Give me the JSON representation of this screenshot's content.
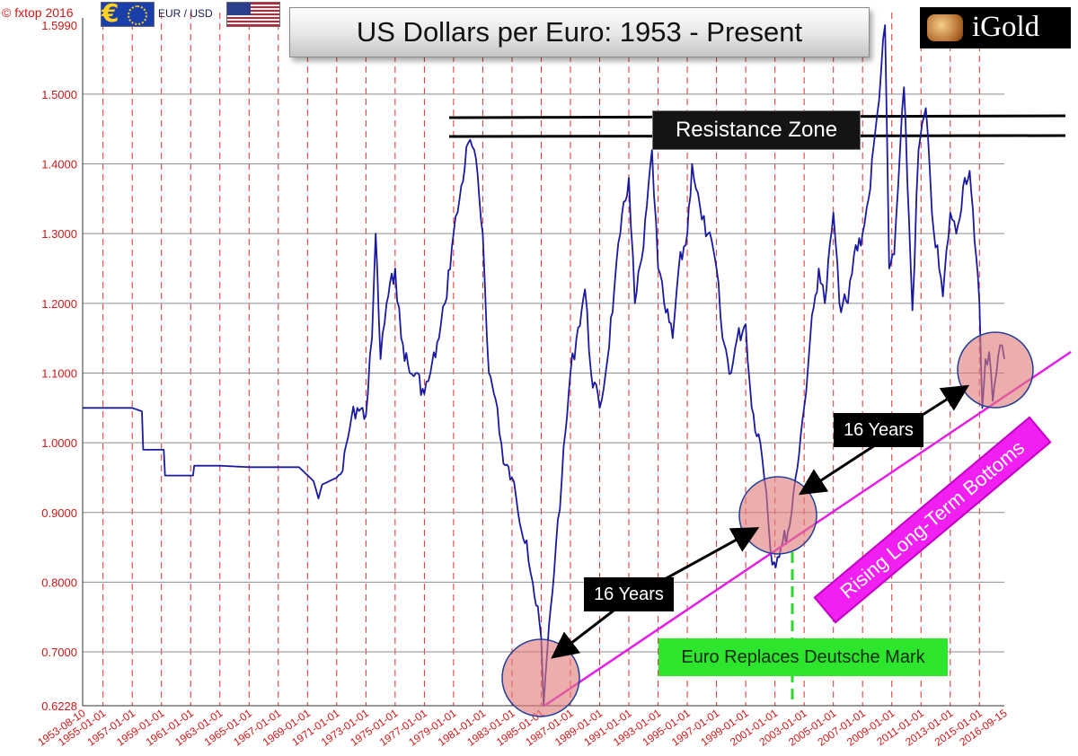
{
  "header": {
    "credit": "© fxtop 2016",
    "pair": "EUR / USD",
    "euro_symbol": "€",
    "logo_text": "iGold"
  },
  "chart_data": {
    "type": "line",
    "title": "US Dollars per Euro: 1953 - Present",
    "xlabel": "",
    "ylabel": "",
    "xlim": [
      "1953-08-10",
      "2016-09-15"
    ],
    "ylim": [
      0.6228,
      1.599
    ],
    "y_ticks": [
      "0.6228",
      "0.7000",
      "0.8000",
      "0.9000",
      "1.0000",
      "1.1000",
      "1.2000",
      "1.3000",
      "1.4000",
      "1.5000",
      "1.5990"
    ],
    "x_ticks": [
      "1953-08-10",
      "1955-01-01",
      "1957-01-01",
      "1959-01-01",
      "1961-01-01",
      "1963-01-01",
      "1965-01-01",
      "1967-01-01",
      "1969-01-01",
      "1971-01-01",
      "1973-01-01",
      "1975-01-01",
      "1977-01-01",
      "1979-01-01",
      "1981-01-01",
      "1983-01-01",
      "1985-01-01",
      "1987-01-01",
      "1989-01-01",
      "1991-01-01",
      "1993-01-01",
      "1995-01-01",
      "1997-01-01",
      "1999-01-01",
      "2001-01-01",
      "2003-01-01",
      "2005-01-01",
      "2007-01-01",
      "2009-01-01",
      "2011-01-01",
      "2013-01-01",
      "2015-01-01",
      "2016-09-15"
    ],
    "grid": true,
    "series": [
      {
        "name": "EUR/USD",
        "color": "#1a1aa0",
        "points": [
          [
            "1953-08-10",
            1.05
          ],
          [
            "1955-01-01",
            1.05
          ],
          [
            "1957-01-01",
            1.05
          ],
          [
            "1957-09-01",
            1.045
          ],
          [
            "1957-10-01",
            0.99
          ],
          [
            "1959-03-01",
            0.99
          ],
          [
            "1959-04-01",
            0.953
          ],
          [
            "1961-03-01",
            0.953
          ],
          [
            "1961-04-01",
            0.967
          ],
          [
            "1963-01-01",
            0.967
          ],
          [
            "1965-01-01",
            0.965
          ],
          [
            "1967-01-01",
            0.965
          ],
          [
            "1968-06-01",
            0.965
          ],
          [
            "1969-06-01",
            0.945
          ],
          [
            "1969-10-01",
            0.92
          ],
          [
            "1970-01-01",
            0.94
          ],
          [
            "1971-01-01",
            0.95
          ],
          [
            "1971-06-01",
            0.96
          ],
          [
            "1972-01-01",
            1.035
          ],
          [
            "1972-06-01",
            1.05
          ],
          [
            "1973-01-01",
            1.04
          ],
          [
            "1973-06-01",
            1.15
          ],
          [
            "1973-09-01",
            1.3
          ],
          [
            "1974-01-01",
            1.12
          ],
          [
            "1974-06-01",
            1.2
          ],
          [
            "1975-01-01",
            1.25
          ],
          [
            "1975-06-01",
            1.15
          ],
          [
            "1976-01-01",
            1.1
          ],
          [
            "1976-06-01",
            1.1
          ],
          [
            "1977-01-01",
            1.07
          ],
          [
            "1977-06-01",
            1.1
          ],
          [
            "1978-01-01",
            1.15
          ],
          [
            "1978-06-01",
            1.2
          ],
          [
            "1979-01-01",
            1.3
          ],
          [
            "1979-06-01",
            1.35
          ],
          [
            "1980-01-01",
            1.43
          ],
          [
            "1980-06-01",
            1.42
          ],
          [
            "1981-01-01",
            1.3
          ],
          [
            "1981-06-01",
            1.1
          ],
          [
            "1982-01-01",
            1.05
          ],
          [
            "1982-06-01",
            0.97
          ],
          [
            "1983-01-01",
            0.95
          ],
          [
            "1983-06-01",
            0.9
          ],
          [
            "1984-01-01",
            0.86
          ],
          [
            "1984-06-01",
            0.8
          ],
          [
            "1985-01-01",
            0.72
          ],
          [
            "1985-03-01",
            0.6228
          ],
          [
            "1985-06-01",
            0.7
          ],
          [
            "1986-01-01",
            0.85
          ],
          [
            "1986-06-01",
            0.95
          ],
          [
            "1987-01-01",
            1.1
          ],
          [
            "1987-06-01",
            1.15
          ],
          [
            "1988-01-01",
            1.22
          ],
          [
            "1988-06-01",
            1.1
          ],
          [
            "1989-01-01",
            1.05
          ],
          [
            "1989-06-01",
            1.1
          ],
          [
            "1990-01-01",
            1.22
          ],
          [
            "1990-06-01",
            1.3
          ],
          [
            "1991-01-01",
            1.38
          ],
          [
            "1991-06-01",
            1.2
          ],
          [
            "1992-01-01",
            1.28
          ],
          [
            "1992-08-01",
            1.42
          ],
          [
            "1993-01-01",
            1.25
          ],
          [
            "1993-06-01",
            1.2
          ],
          [
            "1994-01-01",
            1.15
          ],
          [
            "1994-06-01",
            1.25
          ],
          [
            "1995-01-01",
            1.3
          ],
          [
            "1995-05-01",
            1.4
          ],
          [
            "1996-01-01",
            1.32
          ],
          [
            "1996-06-01",
            1.3
          ],
          [
            "1997-01-01",
            1.25
          ],
          [
            "1997-06-01",
            1.15
          ],
          [
            "1998-01-01",
            1.1
          ],
          [
            "1998-06-01",
            1.15
          ],
          [
            "1999-01-01",
            1.17
          ],
          [
            "1999-06-01",
            1.05
          ],
          [
            "2000-01-01",
            1.0
          ],
          [
            "2000-06-01",
            0.93
          ],
          [
            "2000-10-26",
            0.825
          ],
          [
            "2001-06-01",
            0.85
          ],
          [
            "2002-01-01",
            0.88
          ],
          [
            "2002-06-01",
            0.95
          ],
          [
            "2003-01-01",
            1.05
          ],
          [
            "2003-06-01",
            1.15
          ],
          [
            "2004-01-01",
            1.25
          ],
          [
            "2004-06-01",
            1.2
          ],
          [
            "2005-01-01",
            1.33
          ],
          [
            "2005-06-01",
            1.2
          ],
          [
            "2006-01-01",
            1.2
          ],
          [
            "2006-06-01",
            1.27
          ],
          [
            "2007-01-01",
            1.3
          ],
          [
            "2007-06-01",
            1.35
          ],
          [
            "2008-01-01",
            1.47
          ],
          [
            "2008-07-15",
            1.599
          ],
          [
            "2008-10-27",
            1.25
          ],
          [
            "2009-03-01",
            1.27
          ],
          [
            "2009-11-01",
            1.51
          ],
          [
            "2010-06-01",
            1.19
          ],
          [
            "2010-11-01",
            1.42
          ],
          [
            "2011-05-01",
            1.48
          ],
          [
            "2011-10-01",
            1.33
          ],
          [
            "2012-07-01",
            1.21
          ],
          [
            "2013-01-01",
            1.33
          ],
          [
            "2013-06-01",
            1.3
          ],
          [
            "2014-01-01",
            1.38
          ],
          [
            "2014-05-01",
            1.39
          ],
          [
            "2014-09-01",
            1.29
          ],
          [
            "2015-01-01",
            1.2
          ],
          [
            "2015-03-15",
            1.05
          ],
          [
            "2015-06-01",
            1.12
          ],
          [
            "2015-09-01",
            1.13
          ],
          [
            "2015-12-01",
            1.06
          ],
          [
            "2016-03-01",
            1.1
          ],
          [
            "2016-06-01",
            1.14
          ],
          [
            "2016-09-15",
            1.12
          ]
        ]
      }
    ],
    "annotations": {
      "resistance_label": "Resistance Zone",
      "years_label_1": "16 Years",
      "years_label_2": "16 Years",
      "euro_label": "Euro Replaces Deutsche Mark",
      "rising_label": "Rising Long-Term Bottoms"
    }
  }
}
